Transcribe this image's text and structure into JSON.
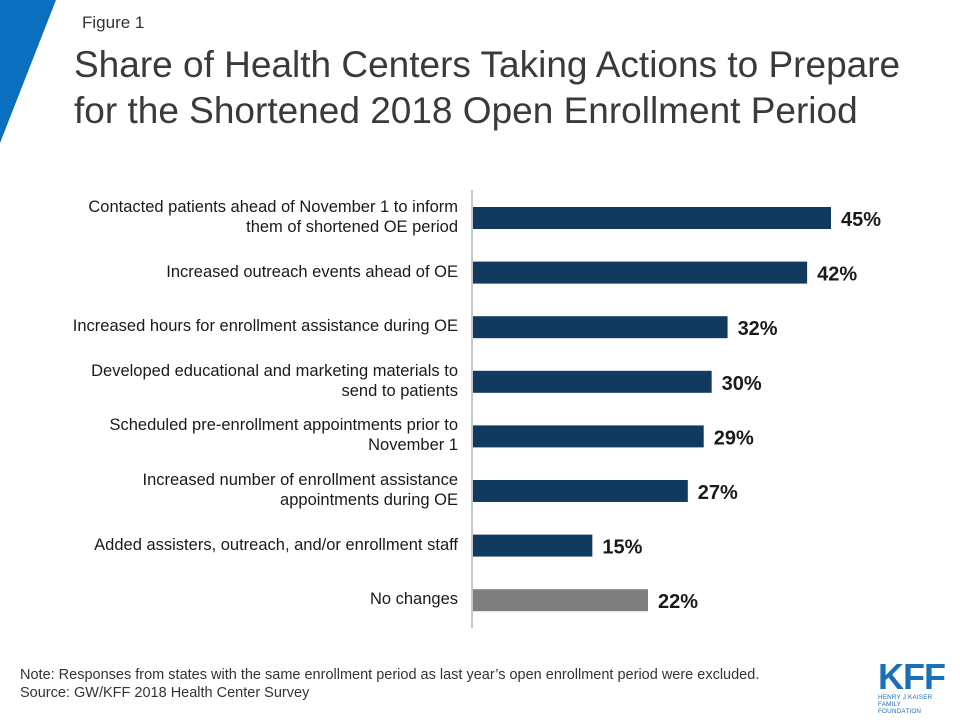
{
  "figure_label": "Figure 1",
  "title_line1": "Share of Health Centers Taking Actions to Prepare",
  "title_line2": "for the Shortened 2018 Open Enrollment Period",
  "colors": {
    "accent": "#0a6fbe",
    "bar": "#123a5e",
    "bar_no_change": "#7f7f7f",
    "logo": "#1b6fb5"
  },
  "chart_data": {
    "type": "bar",
    "orientation": "horizontal",
    "categories": [
      [
        "Contacted patients ahead of November 1 to inform",
        "them of shortened OE period"
      ],
      [
        "Increased outreach events ahead of OE"
      ],
      [
        "Increased hours for enrollment assistance during OE"
      ],
      [
        "Developed educational and marketing materials to",
        "send to patients"
      ],
      [
        "Scheduled pre-enrollment appointments prior to",
        "November 1"
      ],
      [
        "Increased number of enrollment assistance",
        "appointments during OE"
      ],
      [
        "Added assisters, outreach, and/or enrollment staff"
      ],
      [
        "No changes"
      ]
    ],
    "values": [
      45,
      42,
      32,
      30,
      29,
      27,
      15,
      22
    ],
    "value_labels": [
      "45%",
      "42%",
      "32%",
      "30%",
      "29%",
      "27%",
      "15%",
      "22%"
    ],
    "bar_colors": [
      "#123a5e",
      "#123a5e",
      "#123a5e",
      "#123a5e",
      "#123a5e",
      "#123a5e",
      "#123a5e",
      "#7f7f7f"
    ],
    "xlim": [
      0,
      50
    ],
    "grid": false,
    "legend": "none"
  },
  "footer": {
    "note": "Note: Responses from states with the same enrollment  period as last year’s open enrollment  period were excluded.",
    "source": "Source: GW/KFF 2018 Health Center Survey"
  },
  "logo": {
    "mark": "KFF",
    "sub_line1": "HENRY J KAISER",
    "sub_line2": "FAMILY FOUNDATION"
  }
}
